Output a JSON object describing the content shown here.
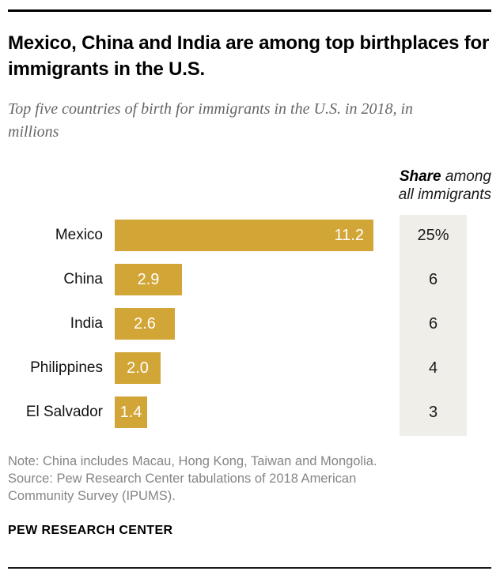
{
  "header": {
    "title": "Mexico, China and India are among top birthplaces for immigrants in the U.S.",
    "subtitle": "Top five countries of birth for immigrants in the U.S. in 2018, in millions"
  },
  "share_header": {
    "bold": "Share",
    "rest": " among",
    "line2": "all immigrants"
  },
  "chart_data": {
    "type": "bar",
    "orientation": "horizontal",
    "categories": [
      "Mexico",
      "China",
      "India",
      "Philippines",
      "El Salvador"
    ],
    "values": [
      11.2,
      2.9,
      2.6,
      2.0,
      1.4
    ],
    "value_labels": [
      "11.2",
      "2.9",
      "2.6",
      "2.0",
      "1.4"
    ],
    "share_labels": [
      "25%",
      "6",
      "6",
      "4",
      "3"
    ],
    "title": "Mexico, China and India are among top birthplaces for immigrants in the U.S.",
    "subtitle": "Top five countries of birth for immigrants in the U.S. in 2018, in millions",
    "secondary_column_header": "Share among all immigrants",
    "xlim": [
      0,
      11.2
    ],
    "grid": false,
    "legend": "none",
    "bar_color": "#D2A537",
    "share_column_bg": "#F0EEE8",
    "value_label_color": "#FFFFFF"
  },
  "footer": {
    "note": "Note: China includes Macau, Hong Kong, Taiwan and Mongolia.",
    "source": "Source: Pew Research Center tabulations of 2018 American Community Survey (IPUMS).",
    "brand": "PEW RESEARCH CENTER"
  }
}
